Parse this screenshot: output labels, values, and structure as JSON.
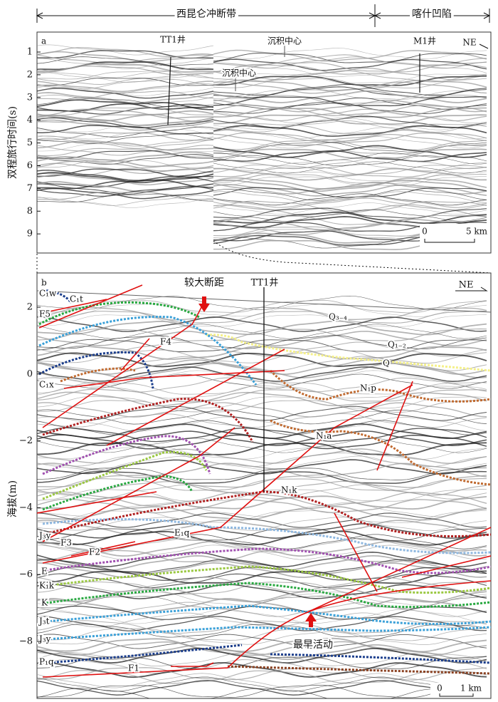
{
  "header": {
    "left": "西昆仑冲断带",
    "right": "喀什凹陷"
  },
  "panel_a": {
    "label": "a",
    "y_axis_label": "双程旅行时间(s)",
    "yticks": [
      "1",
      "2",
      "3",
      "4",
      "5",
      "6",
      "7",
      "8",
      "9"
    ],
    "well_1": "TT1井",
    "depocenter_1": "沉积中心",
    "depocenter_2": "沉积中心",
    "well_2": "M1井",
    "north": "NE",
    "scale_start": "0",
    "scale_end": "5 km"
  },
  "panel_b": {
    "label": "b",
    "y_axis_label": "海拔(m)",
    "yticks": [
      "2",
      "0",
      "−2",
      "−4",
      "−6",
      "−8"
    ],
    "annotation_1": "较大断距",
    "well": "TT1井",
    "north": "NE",
    "annotation_2": "最早活动",
    "scale_start": "0",
    "scale_end": "1 km",
    "horizons": [
      "C₁w",
      "C₁t",
      "F5",
      "F4",
      "C₁x",
      "Q₃₋₄",
      "Q₁₋₂",
      "Q",
      "N₁p",
      "N₁a",
      "N₁k",
      "J₃y",
      "F3",
      "F2",
      "E₁q",
      "E",
      "K₁k",
      "K",
      "J₃t",
      "J₃y",
      "P₁q",
      "F1"
    ]
  }
}
